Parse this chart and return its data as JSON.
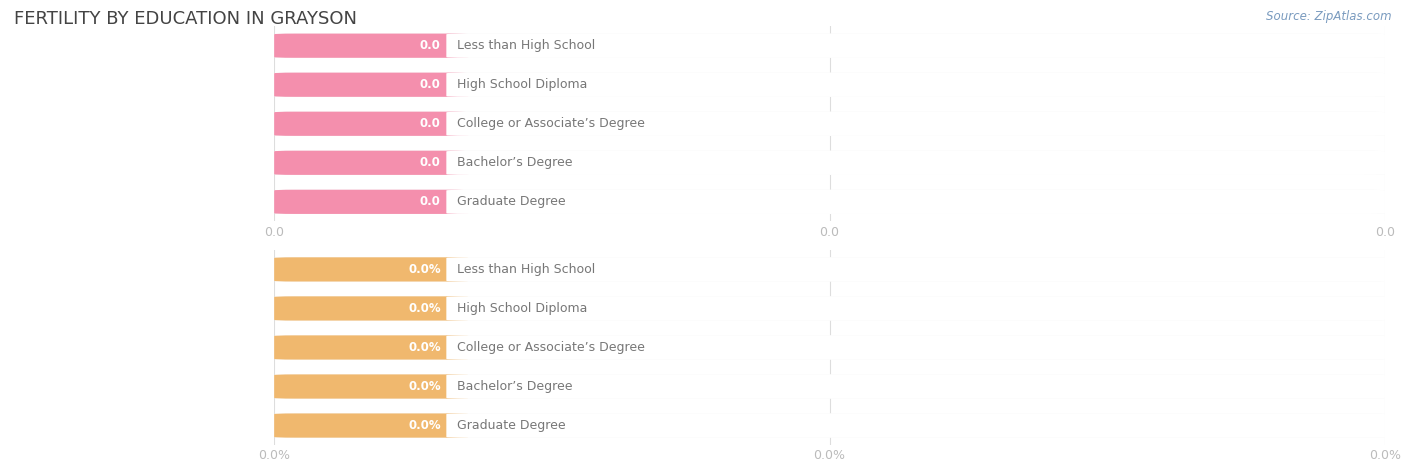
{
  "title": "FERTILITY BY EDUCATION IN GRAYSON",
  "source": "Source: ZipAtlas.com",
  "categories": [
    "Less than High School",
    "High School Diploma",
    "College or Associate’s Degree",
    "Bachelor’s Degree",
    "Graduate Degree"
  ],
  "group1_values": [
    0.0,
    0.0,
    0.0,
    0.0,
    0.0
  ],
  "group2_values": [
    0.0,
    0.0,
    0.0,
    0.0,
    0.0
  ],
  "group1_label_suffix": "",
  "group2_label_suffix": "%",
  "group1_bar_color": "#F48FAD",
  "group1_white_area_color": "#FFFFFF",
  "group1_row_bg": "#F5F5F5",
  "group2_bar_color": "#F0B86E",
  "group2_white_area_color": "#FFFFFF",
  "group2_row_bg": "#F5F5F5",
  "group1_value_color": "#D4748E",
  "group2_value_color": "#CC9944",
  "label_color": "#777777",
  "title_color": "#444444",
  "axis_tick_color": "#bbbbbb",
  "background_color": "#ffffff",
  "grid_color": "#dddddd",
  "fig_width": 14.06,
  "fig_height": 4.76,
  "dpi": 100,
  "x_tick_labels_group1": [
    "0.0",
    "0.0",
    "0.0"
  ],
  "x_tick_labels_group2": [
    "0.0%",
    "0.0%",
    "0.0%"
  ]
}
